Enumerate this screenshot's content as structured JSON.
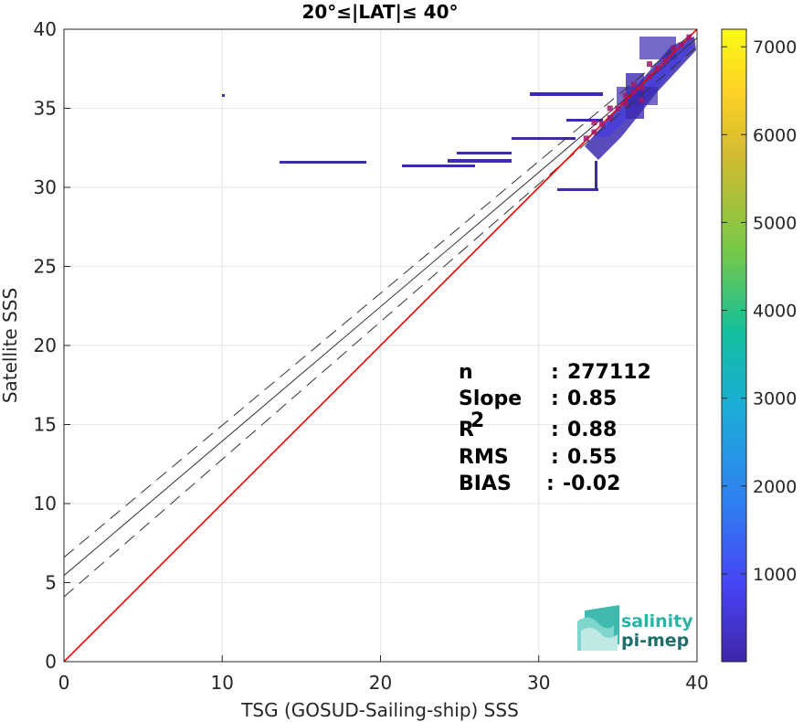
{
  "chart_data": {
    "type": "heatmap",
    "title": "20°≤|LAT|≤ 40°",
    "xlabel": "TSG (GOSUD-Sailing-ship) SSS",
    "ylabel": "Satellite SSS",
    "xlim": [
      0,
      40
    ],
    "ylim": [
      0,
      40
    ],
    "xticks": [
      "0",
      "10",
      "20",
      "30",
      "40"
    ],
    "yticks": [
      "0",
      "5",
      "10",
      "15",
      "20",
      "25",
      "30",
      "35",
      "40"
    ],
    "grid": true,
    "colorbar": {
      "range": [
        0,
        7200
      ],
      "ticks": [
        "1000",
        "2000",
        "3000",
        "4000",
        "5000",
        "6000",
        "7000"
      ],
      "tick_values": [
        1000,
        2000,
        3000,
        4000,
        5000,
        6000,
        7000
      ],
      "colormap": [
        "#3e26a8",
        "#4743f5",
        "#2f7ff1",
        "#1cadd9",
        "#13be9d",
        "#77c948",
        "#d2bb30",
        "#fdd125",
        "#f9fb15"
      ]
    },
    "lines": {
      "one_to_one": {
        "color": "#ff0000",
        "slope": 1.0,
        "intercept": 0.0
      },
      "fit": {
        "color": "#333333",
        "slope": 0.85,
        "intercept": 5.45
      },
      "fit_upper": {
        "slope": 0.835,
        "intercept": 6.6
      },
      "fit_lower": {
        "slope": 0.87,
        "intercept": 4.1
      }
    },
    "density_points": [
      {
        "x": 39.5,
        "y": 39.5
      },
      {
        "x": 39,
        "y": 39
      },
      {
        "x": 38.5,
        "y": 38.8
      },
      {
        "x": 38,
        "y": 38
      },
      {
        "x": 37.5,
        "y": 37.5
      },
      {
        "x": 37,
        "y": 37
      },
      {
        "x": 36.5,
        "y": 36.3
      },
      {
        "x": 36,
        "y": 36
      },
      {
        "x": 35.5,
        "y": 35.3
      },
      {
        "x": 35,
        "y": 35
      },
      {
        "x": 34.5,
        "y": 34.4
      },
      {
        "x": 34,
        "y": 34
      },
      {
        "x": 33.5,
        "y": 33.5
      },
      {
        "x": 33,
        "y": 33.1
      },
      {
        "x": 36,
        "y": 36.5
      },
      {
        "x": 35.5,
        "y": 35.8
      },
      {
        "x": 37,
        "y": 37.8
      },
      {
        "x": 34.5,
        "y": 35
      },
      {
        "x": 33.5,
        "y": 34.1
      },
      {
        "x": 36.5,
        "y": 35.5
      }
    ],
    "stats": [
      {
        "label": "n",
        "sep": ":",
        "value": "277112"
      },
      {
        "label": "Slope",
        "sep": ":",
        "value": "0.85"
      },
      {
        "label": "R",
        "sup": "2",
        "sep": ":",
        "value": "0.88"
      },
      {
        "label": "RMS",
        "sep": ":",
        "value": "0.55"
      },
      {
        "label": "BIAS",
        "sep": ":",
        "value": "-0.02"
      }
    ]
  },
  "logo": {
    "line1": "salinity",
    "line2": "pi-mep",
    "color1": "#2bb3a5",
    "color2": "#1e6e6a"
  }
}
